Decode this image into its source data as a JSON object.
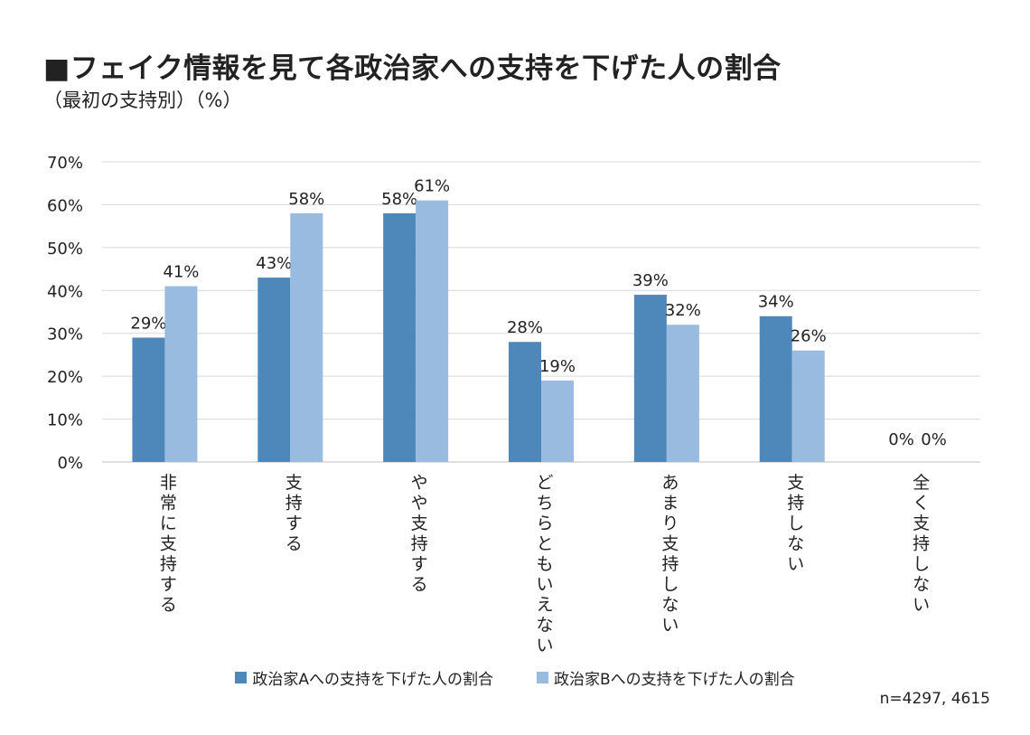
{
  "title": "■フェイク情報を見て各政治家への支持を下げた人の割合",
  "subtitle": "（最初の支持別）（%）",
  "note": "n=4297, 4615",
  "colors": {
    "seriesA": "#4e88bb",
    "seriesB": "#98bbdf",
    "grid": "#d9d9d9"
  },
  "chart_data": {
    "type": "bar",
    "categories": [
      "非常に支持する",
      "支持する",
      "やや支持する",
      "どちらともいえない",
      "あまり支持しない",
      "支持しない",
      "全く支持しない"
    ],
    "series": [
      {
        "name": "政治家Aへの支持を下げた人の割合",
        "values": [
          29,
          43,
          58,
          28,
          39,
          34,
          0
        ],
        "labels": [
          "29%",
          "43%",
          "58%",
          "28%",
          "39%",
          "34%",
          "0%"
        ]
      },
      {
        "name": "政治家Bへの支持を下げた人の割合",
        "values": [
          41,
          58,
          61,
          19,
          32,
          26,
          0
        ],
        "labels": [
          "41%",
          "58%",
          "61%",
          "19%",
          "32%",
          "26%",
          "0%"
        ]
      }
    ],
    "ylim": [
      0,
      70
    ],
    "yticks": [
      "0%",
      "10%",
      "20%",
      "30%",
      "40%",
      "50%",
      "60%",
      "70%"
    ],
    "grid": true,
    "legend": "bottom"
  }
}
